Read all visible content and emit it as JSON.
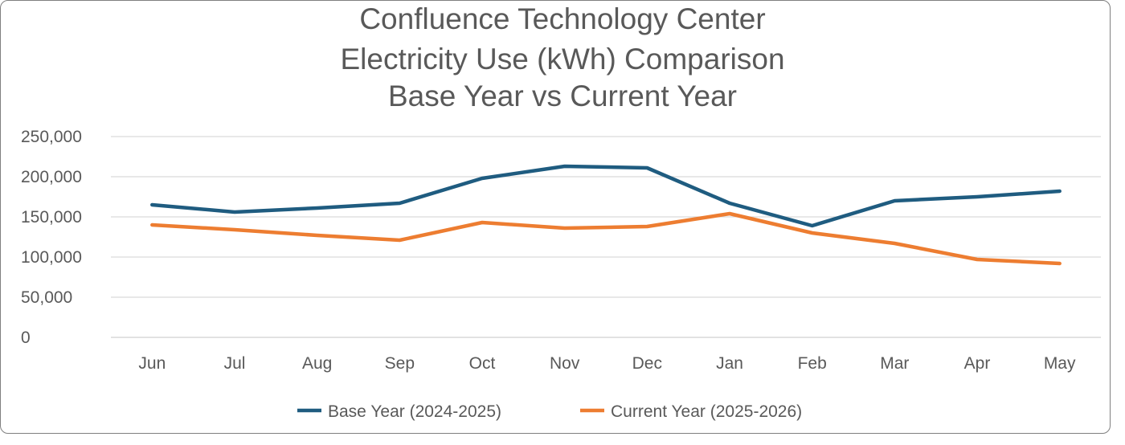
{
  "chart_data": {
    "type": "line",
    "title": [
      "Confluence Technology Center",
      "Electricity Use (kWh) Comparison",
      "Base Year vs Current Year"
    ],
    "categories": [
      "Jun",
      "Jul",
      "Aug",
      "Sep",
      "Oct",
      "Nov",
      "Dec",
      "Jan",
      "Feb",
      "Mar",
      "Apr",
      "May"
    ],
    "series": [
      {
        "name": "Base Year (2024-2025)",
        "color": "#1f5c80",
        "values": [
          165000,
          156000,
          161000,
          167000,
          198000,
          213000,
          211000,
          167000,
          139000,
          170000,
          175000,
          182000
        ]
      },
      {
        "name": "Current Year (2025-2026)",
        "color": "#ed7d31",
        "values": [
          140000,
          134000,
          127000,
          121000,
          143000,
          136000,
          138000,
          154000,
          130000,
          117000,
          97000,
          92000
        ]
      }
    ],
    "ylim": [
      0,
      250000
    ],
    "yticks": [
      0,
      50000,
      100000,
      150000,
      200000,
      250000
    ],
    "ytick_labels": [
      "0",
      "50,000",
      "100,000",
      "150,000",
      "200,000",
      "250,000"
    ],
    "xlabel": "",
    "ylabel": "",
    "grid": true,
    "legend_position": "bottom"
  }
}
